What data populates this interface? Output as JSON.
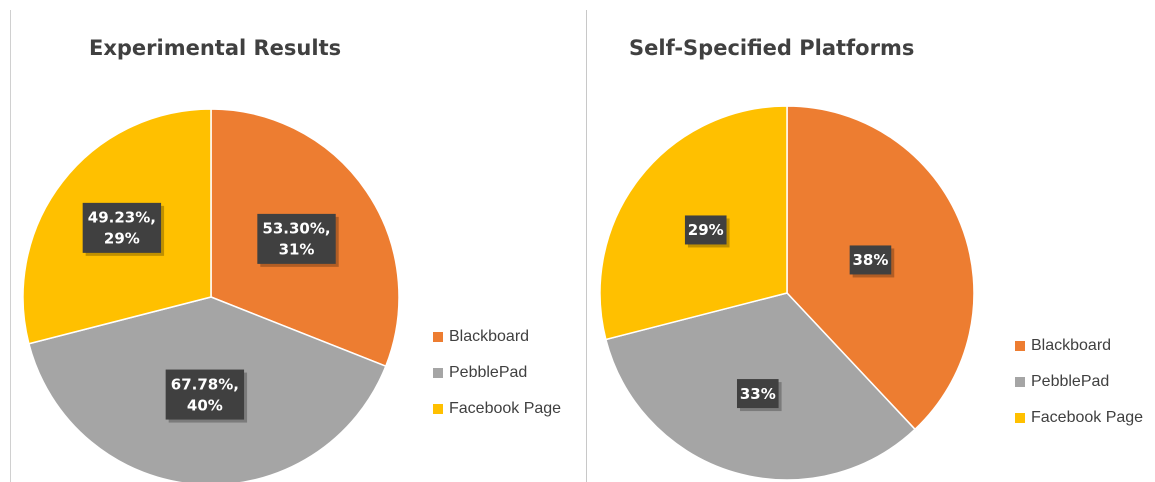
{
  "chart_data": [
    {
      "type": "pie",
      "title": "Experimental Results",
      "categories": [
        "Blackboard",
        "PebblePad",
        "Facebook Page"
      ],
      "values": [
        31,
        40,
        29
      ],
      "data_labels": [
        "53.30%,\n31%",
        "67.78%,\n40%",
        "49.23%,\n29%"
      ],
      "colors": [
        "#ED7D31",
        "#A5A5A5",
        "#FFC000"
      ],
      "legend": "right"
    },
    {
      "type": "pie",
      "title": "Self-Specified Platforms",
      "categories": [
        "Blackboard",
        "PebblePad",
        "Facebook Page"
      ],
      "values": [
        38,
        33,
        29
      ],
      "data_labels": [
        "38%",
        "33%",
        "29%"
      ],
      "colors": [
        "#ED7D31",
        "#A5A5A5",
        "#FFC000"
      ],
      "legend": "right"
    }
  ]
}
